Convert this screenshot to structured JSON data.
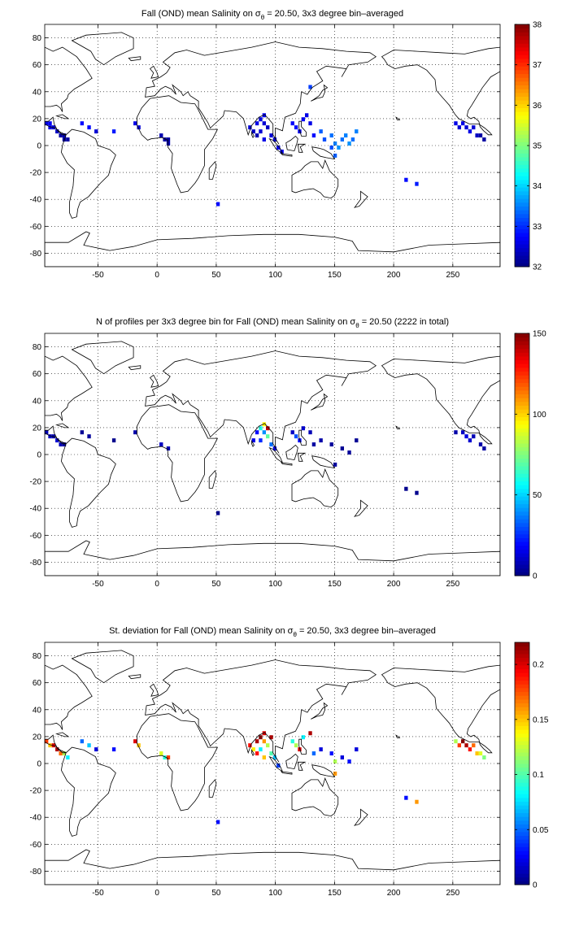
{
  "page": {
    "background": "#ffffff"
  },
  "chart_data": [
    {
      "type": "heatmap",
      "title_prefix": "Fall (OND) mean Salinity on ",
      "title_sigma": "σ",
      "title_sub": "θ",
      "title_suffix": " = 20.50, 3x3 degree bin–averaged",
      "xlim": [
        -95,
        290
      ],
      "ylim": [
        -90,
        90
      ],
      "xticks": [
        -50,
        0,
        50,
        100,
        150,
        200,
        250
      ],
      "yticks": [
        -80,
        -60,
        -40,
        -20,
        0,
        20,
        40,
        60,
        80
      ],
      "grid": true,
      "colorbar": {
        "min": 32,
        "max": 38,
        "ticks": [
          32,
          33,
          34,
          35,
          36,
          37,
          38
        ]
      },
      "cells": [
        {
          "x": -95,
          "y": 15,
          "v": 32.6
        },
        {
          "x": -92,
          "y": 12,
          "v": 32.6
        },
        {
          "x": -89,
          "y": 12,
          "v": 32.5
        },
        {
          "x": -86,
          "y": 9,
          "v": 32.4
        },
        {
          "x": -83,
          "y": 6,
          "v": 32.2
        },
        {
          "x": -80,
          "y": 6,
          "v": 32.3
        },
        {
          "x": -80,
          "y": 3,
          "v": 32.2
        },
        {
          "x": -77,
          "y": 3,
          "v": 32.2
        },
        {
          "x": -92,
          "y": 15,
          "v": 32.7
        },
        {
          "x": -65,
          "y": 15,
          "v": 32.8
        },
        {
          "x": -59,
          "y": 12,
          "v": 32.8
        },
        {
          "x": -53,
          "y": 9,
          "v": 32.5
        },
        {
          "x": -38,
          "y": 9,
          "v": 32.9
        },
        {
          "x": -20,
          "y": 15,
          "v": 32.6
        },
        {
          "x": -17,
          "y": 12,
          "v": 32.5
        },
        {
          "x": 2,
          "y": 6,
          "v": 32.3
        },
        {
          "x": 5,
          "y": 3,
          "v": 32.2
        },
        {
          "x": 8,
          "y": 3,
          "v": 32.2
        },
        {
          "x": 8,
          "y": 0,
          "v": 32.3
        },
        {
          "x": 50,
          "y": -45,
          "v": 32.8
        },
        {
          "x": 77,
          "y": 12,
          "v": 32.5
        },
        {
          "x": 80,
          "y": 9,
          "v": 32.4
        },
        {
          "x": 83,
          "y": 15,
          "v": 32.6
        },
        {
          "x": 86,
          "y": 18,
          "v": 32.6
        },
        {
          "x": 89,
          "y": 21,
          "v": 32.7
        },
        {
          "x": 89,
          "y": 15,
          "v": 32.5
        },
        {
          "x": 92,
          "y": 12,
          "v": 32.4
        },
        {
          "x": 86,
          "y": 9,
          "v": 32.5
        },
        {
          "x": 83,
          "y": 6,
          "v": 32.3
        },
        {
          "x": 89,
          "y": 3,
          "v": 32.6
        },
        {
          "x": 95,
          "y": 6,
          "v": 32.5
        },
        {
          "x": 98,
          "y": 3,
          "v": 32.5
        },
        {
          "x": 101,
          "y": -3,
          "v": 32.6
        },
        {
          "x": 104,
          "y": -6,
          "v": 32.7
        },
        {
          "x": 113,
          "y": 15,
          "v": 32.7
        },
        {
          "x": 116,
          "y": 12,
          "v": 32.8
        },
        {
          "x": 119,
          "y": 9,
          "v": 32.6
        },
        {
          "x": 122,
          "y": 18,
          "v": 32.7
        },
        {
          "x": 125,
          "y": 21,
          "v": 32.6
        },
        {
          "x": 128,
          "y": 15,
          "v": 32.6
        },
        {
          "x": 131,
          "y": 6,
          "v": 32.8
        },
        {
          "x": 128,
          "y": 42,
          "v": 33.1
        },
        {
          "x": 137,
          "y": 9,
          "v": 33.3
        },
        {
          "x": 140,
          "y": 3,
          "v": 33.2
        },
        {
          "x": 146,
          "y": 6,
          "v": 33.4
        },
        {
          "x": 149,
          "y": 0,
          "v": 33.5
        },
        {
          "x": 152,
          "y": -3,
          "v": 33.6
        },
        {
          "x": 155,
          "y": 3,
          "v": 33.4
        },
        {
          "x": 158,
          "y": 6,
          "v": 33.5
        },
        {
          "x": 161,
          "y": 0,
          "v": 33.6
        },
        {
          "x": 164,
          "y": 3,
          "v": 33.4
        },
        {
          "x": 149,
          "y": -9,
          "v": 33.3
        },
        {
          "x": 146,
          "y": -3,
          "v": 33.2
        },
        {
          "x": 167,
          "y": 9,
          "v": 33.5
        },
        {
          "x": 209,
          "y": -27,
          "v": 32.8
        },
        {
          "x": 218,
          "y": -30,
          "v": 32.9
        },
        {
          "x": 251,
          "y": 15,
          "v": 32.6
        },
        {
          "x": 254,
          "y": 12,
          "v": 32.5
        },
        {
          "x": 257,
          "y": 15,
          "v": 32.6
        },
        {
          "x": 260,
          "y": 12,
          "v": 32.5
        },
        {
          "x": 263,
          "y": 9,
          "v": 32.6
        },
        {
          "x": 266,
          "y": 12,
          "v": 32.5
        },
        {
          "x": 269,
          "y": 6,
          "v": 32.4
        },
        {
          "x": 272,
          "y": 6,
          "v": 32.2
        },
        {
          "x": 275,
          "y": 3,
          "v": 32.2
        }
      ]
    },
    {
      "type": "heatmap",
      "title_prefix": "N of profiles per 3x3 degree bin for Fall (OND) mean Salinity on ",
      "title_sigma": "σ",
      "title_sub": "θ",
      "title_suffix": " = 20.50 (2222 in total)",
      "xlim": [
        -95,
        290
      ],
      "ylim": [
        -90,
        90
      ],
      "xticks": [
        -50,
        0,
        50,
        100,
        150,
        200,
        250
      ],
      "yticks": [
        -80,
        -60,
        -40,
        -20,
        0,
        20,
        40,
        60,
        80
      ],
      "grid": true,
      "colorbar": {
        "min": 0,
        "max": 150,
        "ticks": [
          0,
          50,
          100,
          150
        ]
      },
      "cells": [
        {
          "x": -95,
          "y": 15,
          "v": 8
        },
        {
          "x": -92,
          "y": 12,
          "v": 10
        },
        {
          "x": -89,
          "y": 12,
          "v": 6
        },
        {
          "x": -86,
          "y": 9,
          "v": 12
        },
        {
          "x": -83,
          "y": 6,
          "v": 8
        },
        {
          "x": -80,
          "y": 6,
          "v": 5
        },
        {
          "x": -65,
          "y": 15,
          "v": 3
        },
        {
          "x": -59,
          "y": 12,
          "v": 4
        },
        {
          "x": -38,
          "y": 9,
          "v": 2
        },
        {
          "x": -20,
          "y": 15,
          "v": 6
        },
        {
          "x": 2,
          "y": 6,
          "v": 10
        },
        {
          "x": 8,
          "y": 3,
          "v": 8
        },
        {
          "x": 50,
          "y": -45,
          "v": 2
        },
        {
          "x": 80,
          "y": 9,
          "v": 15
        },
        {
          "x": 83,
          "y": 15,
          "v": 20
        },
        {
          "x": 86,
          "y": 18,
          "v": 60
        },
        {
          "x": 89,
          "y": 21,
          "v": 95
        },
        {
          "x": 92,
          "y": 18,
          "v": 140
        },
        {
          "x": 89,
          "y": 15,
          "v": 40
        },
        {
          "x": 86,
          "y": 9,
          "v": 25
        },
        {
          "x": 92,
          "y": 12,
          "v": 70
        },
        {
          "x": 95,
          "y": 6,
          "v": 35
        },
        {
          "x": 98,
          "y": 3,
          "v": 15
        },
        {
          "x": 113,
          "y": 15,
          "v": 10
        },
        {
          "x": 116,
          "y": 12,
          "v": 30
        },
        {
          "x": 119,
          "y": 9,
          "v": 20
        },
        {
          "x": 122,
          "y": 18,
          "v": 12
        },
        {
          "x": 128,
          "y": 15,
          "v": 8
        },
        {
          "x": 131,
          "y": 6,
          "v": 5
        },
        {
          "x": 137,
          "y": 9,
          "v": 6
        },
        {
          "x": 146,
          "y": 6,
          "v": 4
        },
        {
          "x": 155,
          "y": 3,
          "v": 3
        },
        {
          "x": 161,
          "y": 0,
          "v": 4
        },
        {
          "x": 167,
          "y": 9,
          "v": 3
        },
        {
          "x": 149,
          "y": -9,
          "v": 5
        },
        {
          "x": 209,
          "y": -27,
          "v": 2
        },
        {
          "x": 218,
          "y": -30,
          "v": 2
        },
        {
          "x": 251,
          "y": 15,
          "v": 6
        },
        {
          "x": 257,
          "y": 15,
          "v": 10
        },
        {
          "x": 260,
          "y": 12,
          "v": 14
        },
        {
          "x": 263,
          "y": 9,
          "v": 12
        },
        {
          "x": 266,
          "y": 12,
          "v": 8
        },
        {
          "x": 272,
          "y": 6,
          "v": 6
        },
        {
          "x": 275,
          "y": 3,
          "v": 5
        }
      ]
    },
    {
      "type": "heatmap",
      "title_prefix": "St. deviation for Fall (OND) mean Salinity on ",
      "title_sigma": "σ",
      "title_sub": "θ",
      "title_suffix": " = 20.50, 3x3 degree bin–averaged",
      "xlim": [
        -95,
        290
      ],
      "ylim": [
        -90,
        90
      ],
      "xticks": [
        -50,
        0,
        50,
        100,
        150,
        200,
        250
      ],
      "yticks": [
        -80,
        -60,
        -40,
        -20,
        0,
        20,
        40,
        60,
        80
      ],
      "grid": true,
      "colorbar": {
        "min": 0,
        "max": 0.22,
        "ticks": [
          0,
          0.05,
          0.1,
          0.15,
          0.2
        ]
      },
      "cells": [
        {
          "x": -95,
          "y": 15,
          "v": 0.18
        },
        {
          "x": -92,
          "y": 12,
          "v": 0.15
        },
        {
          "x": -89,
          "y": 12,
          "v": 0.2
        },
        {
          "x": -86,
          "y": 9,
          "v": 0.21
        },
        {
          "x": -83,
          "y": 6,
          "v": 0.17
        },
        {
          "x": -80,
          "y": 6,
          "v": 0.12
        },
        {
          "x": -77,
          "y": 3,
          "v": 0.08
        },
        {
          "x": -65,
          "y": 15,
          "v": 0.05
        },
        {
          "x": -59,
          "y": 12,
          "v": 0.07
        },
        {
          "x": -53,
          "y": 9,
          "v": 0.02
        },
        {
          "x": -38,
          "y": 9,
          "v": 0.03
        },
        {
          "x": -20,
          "y": 15,
          "v": 0.2
        },
        {
          "x": -17,
          "y": 12,
          "v": 0.15
        },
        {
          "x": 2,
          "y": 6,
          "v": 0.13
        },
        {
          "x": 5,
          "y": 3,
          "v": 0.09
        },
        {
          "x": 8,
          "y": 3,
          "v": 0.18
        },
        {
          "x": 50,
          "y": -45,
          "v": 0.03
        },
        {
          "x": 77,
          "y": 12,
          "v": 0.19
        },
        {
          "x": 80,
          "y": 9,
          "v": 0.14
        },
        {
          "x": 83,
          "y": 15,
          "v": 0.21
        },
        {
          "x": 86,
          "y": 18,
          "v": 0.22
        },
        {
          "x": 89,
          "y": 21,
          "v": 0.2
        },
        {
          "x": 89,
          "y": 15,
          "v": 0.16
        },
        {
          "x": 92,
          "y": 12,
          "v": 0.12
        },
        {
          "x": 95,
          "y": 18,
          "v": 0.21
        },
        {
          "x": 86,
          "y": 9,
          "v": 0.08
        },
        {
          "x": 83,
          "y": 6,
          "v": 0.19
        },
        {
          "x": 89,
          "y": 3,
          "v": 0.15
        },
        {
          "x": 95,
          "y": 6,
          "v": 0.1
        },
        {
          "x": 98,
          "y": 3,
          "v": 0.07
        },
        {
          "x": 101,
          "y": -3,
          "v": 0.04
        },
        {
          "x": 113,
          "y": 15,
          "v": 0.09
        },
        {
          "x": 116,
          "y": 12,
          "v": 0.12
        },
        {
          "x": 119,
          "y": 9,
          "v": 0.2
        },
        {
          "x": 122,
          "y": 18,
          "v": 0.08
        },
        {
          "x": 128,
          "y": 21,
          "v": 0.21
        },
        {
          "x": 131,
          "y": 6,
          "v": 0.05
        },
        {
          "x": 137,
          "y": 9,
          "v": 0.02
        },
        {
          "x": 146,
          "y": 6,
          "v": 0.03
        },
        {
          "x": 149,
          "y": 0,
          "v": 0.12
        },
        {
          "x": 155,
          "y": 3,
          "v": 0.02
        },
        {
          "x": 161,
          "y": 0,
          "v": 0.03
        },
        {
          "x": 167,
          "y": 9,
          "v": 0.02
        },
        {
          "x": 149,
          "y": -9,
          "v": 0.16
        },
        {
          "x": 209,
          "y": -27,
          "v": 0.03
        },
        {
          "x": 218,
          "y": -30,
          "v": 0.16
        },
        {
          "x": 251,
          "y": 15,
          "v": 0.12
        },
        {
          "x": 254,
          "y": 12,
          "v": 0.18
        },
        {
          "x": 257,
          "y": 15,
          "v": 0.22
        },
        {
          "x": 260,
          "y": 12,
          "v": 0.21
        },
        {
          "x": 263,
          "y": 9,
          "v": 0.19
        },
        {
          "x": 266,
          "y": 12,
          "v": 0.17
        },
        {
          "x": 269,
          "y": 6,
          "v": 0.15
        },
        {
          "x": 272,
          "y": 6,
          "v": 0.13
        },
        {
          "x": 275,
          "y": 3,
          "v": 0.11
        }
      ]
    }
  ]
}
